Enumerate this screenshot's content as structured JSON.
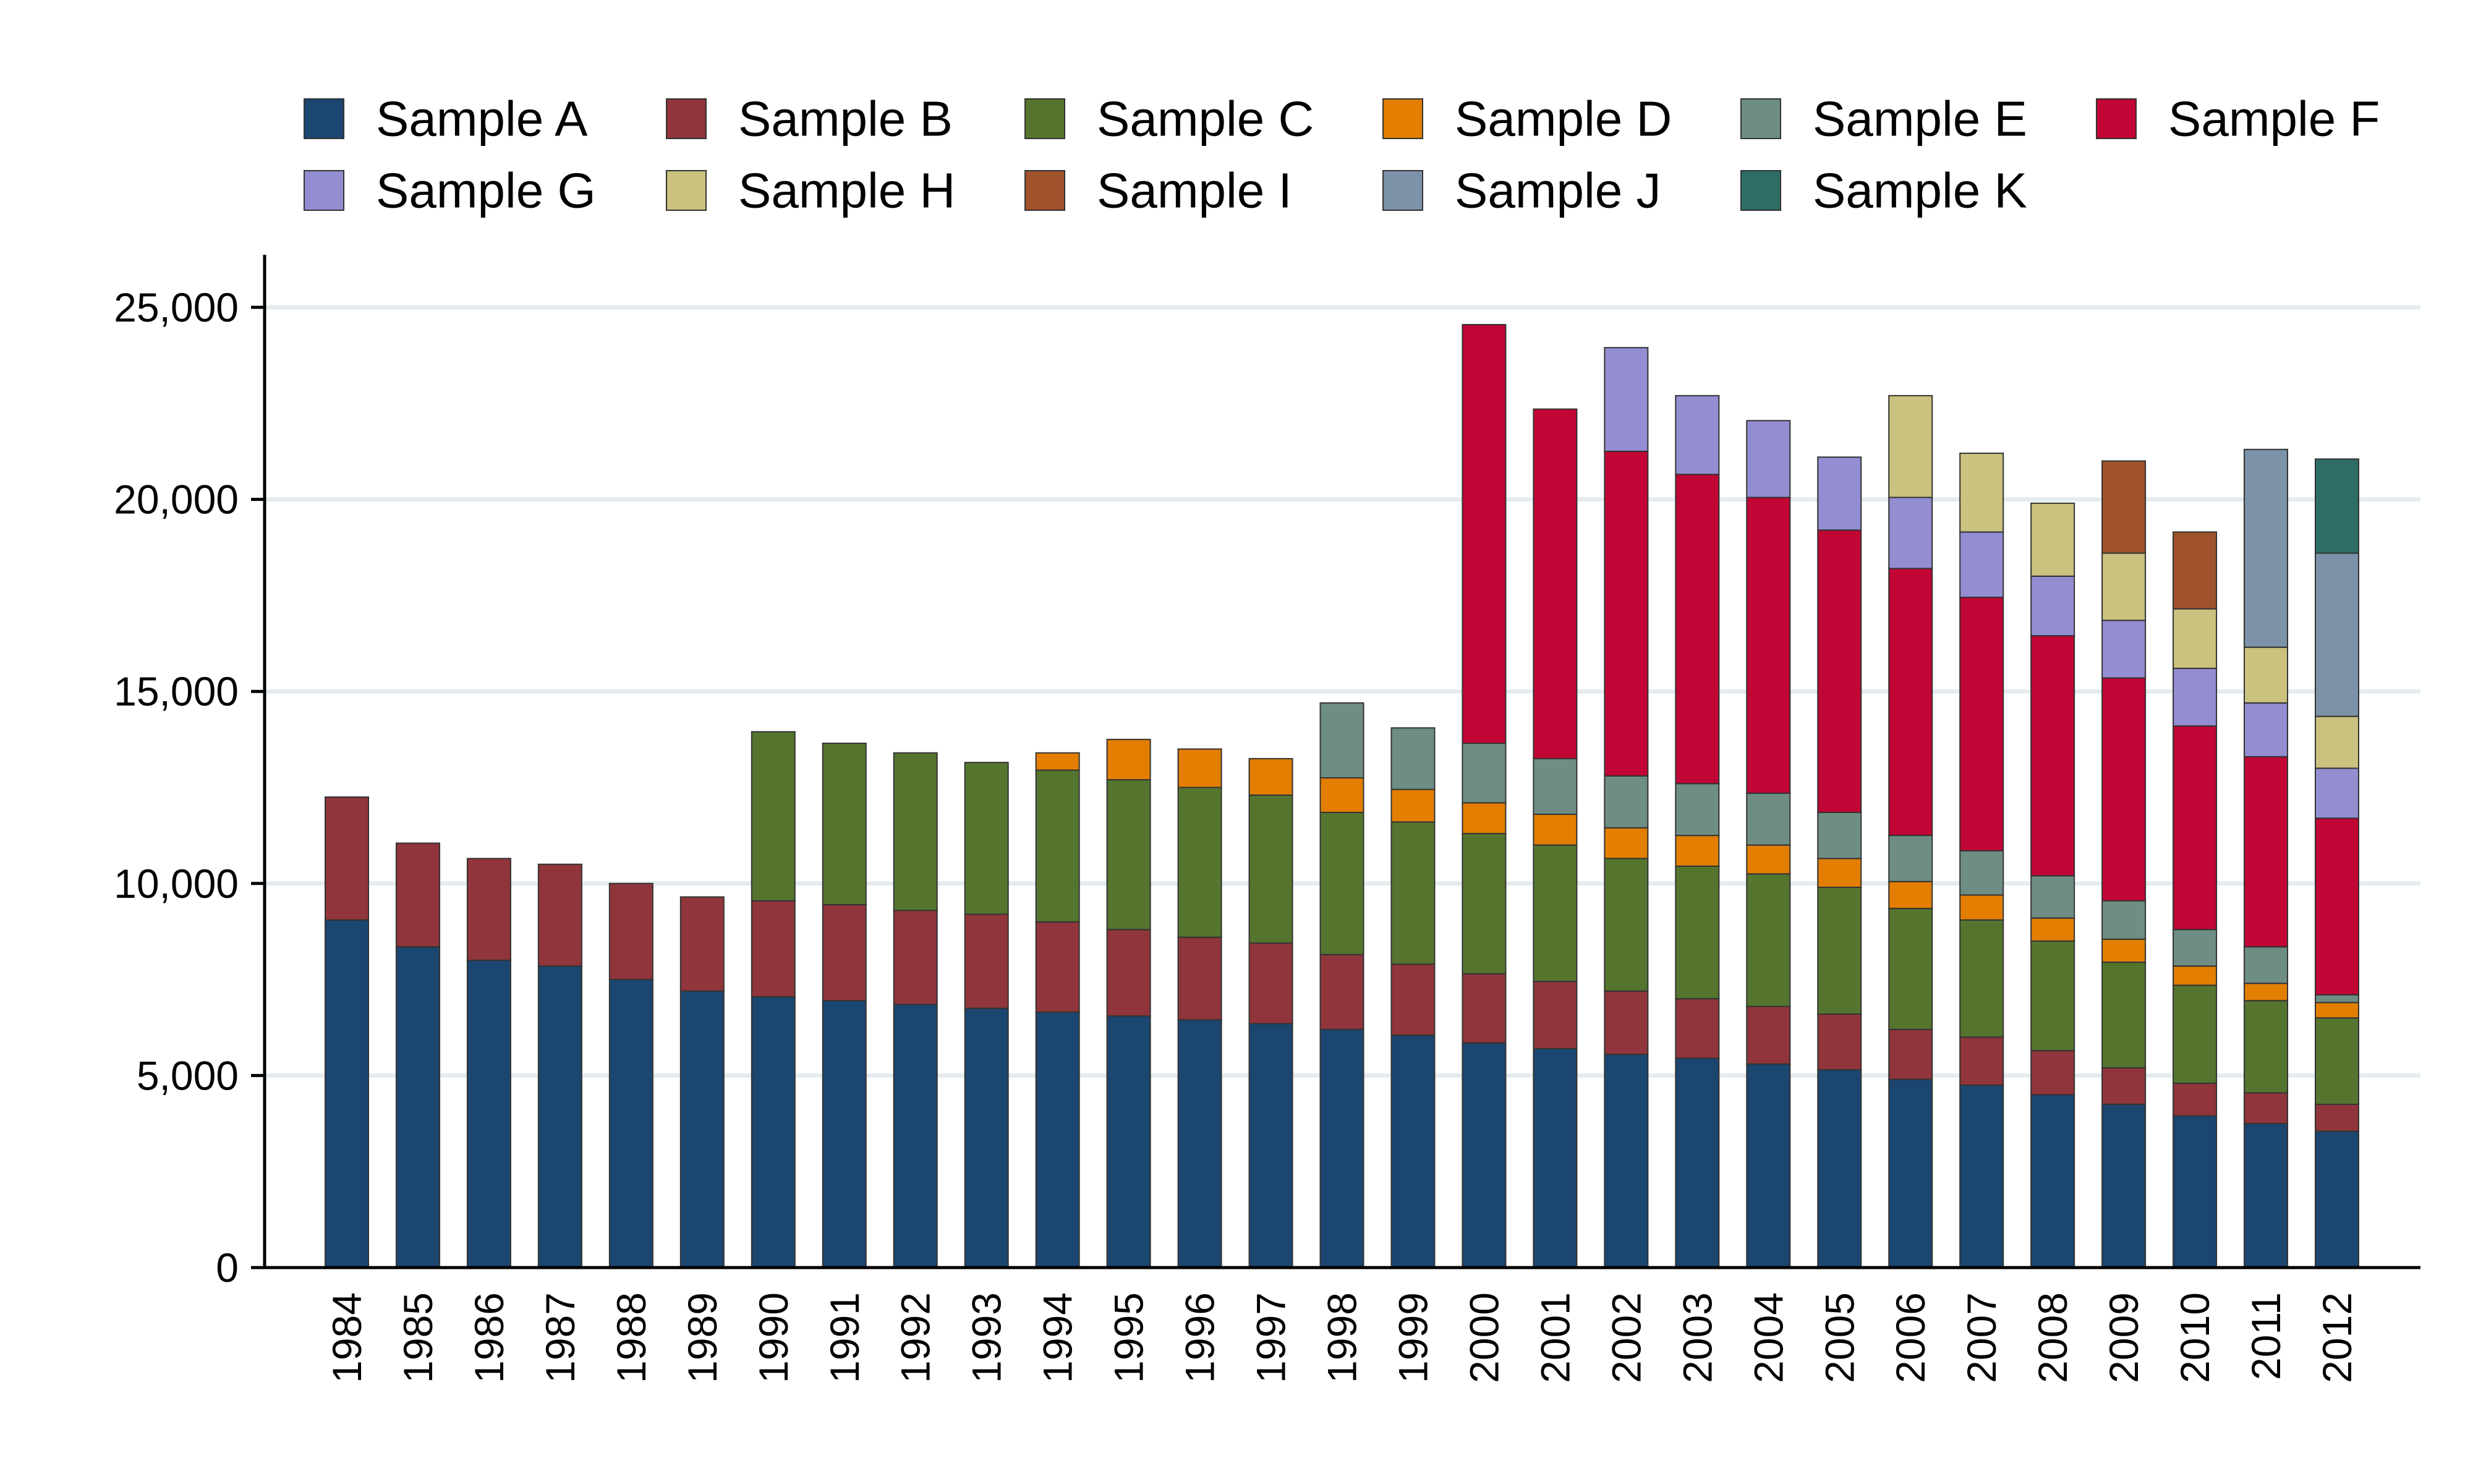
{
  "chart_data": {
    "type": "bar",
    "stacked": true,
    "title": "",
    "xlabel": "",
    "ylabel": "",
    "ylim": [
      0,
      26000
    ],
    "yticks": [
      0,
      5000,
      10000,
      15000,
      20000,
      25000
    ],
    "ytick_labels": [
      "0",
      "5,000",
      "10,000",
      "15,000",
      "20,000",
      "25,000"
    ],
    "grid": "horizontal",
    "legend_position": "top",
    "categories": [
      "1984",
      "1985",
      "1986",
      "1987",
      "1988",
      "1989",
      "1990",
      "1991",
      "1992",
      "1993",
      "1994",
      "1995",
      "1996",
      "1997",
      "1998",
      "1999",
      "2000",
      "2001",
      "2002",
      "2003",
      "2004",
      "2005",
      "2006",
      "2007",
      "2008",
      "2009",
      "2010",
      "2011",
      "2012"
    ],
    "series": [
      {
        "name": "Sample A",
        "color": "#1b4670",
        "values": [
          9050,
          8350,
          8000,
          7850,
          7500,
          7200,
          7050,
          6950,
          6850,
          6750,
          6650,
          6550,
          6450,
          6350,
          6200,
          6050,
          5850,
          5700,
          5550,
          5450,
          5300,
          5150,
          4900,
          4750,
          4500,
          4250,
          3950,
          3750,
          3550
        ]
      },
      {
        "name": "Sample B",
        "color": "#90353b",
        "values": [
          3200,
          2700,
          2650,
          2650,
          2500,
          2450,
          2500,
          2500,
          2450,
          2450,
          2350,
          2250,
          2150,
          2100,
          1950,
          1850,
          1800,
          1750,
          1650,
          1550,
          1500,
          1450,
          1300,
          1250,
          1150,
          950,
          850,
          800,
          700
        ]
      },
      {
        "name": "Sample C",
        "color": "#55752f",
        "values": [
          0,
          0,
          0,
          0,
          0,
          0,
          4400,
          4200,
          4100,
          3950,
          3950,
          3900,
          3900,
          3850,
          3700,
          3700,
          3650,
          3550,
          3450,
          3450,
          3450,
          3300,
          3150,
          3050,
          2850,
          2750,
          2550,
          2400,
          2250
        ]
      },
      {
        "name": "Sample D",
        "color": "#e37e00",
        "values": [
          0,
          0,
          0,
          0,
          0,
          0,
          0,
          0,
          0,
          0,
          450,
          1050,
          1000,
          950,
          900,
          850,
          800,
          800,
          800,
          800,
          750,
          750,
          700,
          650,
          600,
          600,
          500,
          450,
          400
        ]
      },
      {
        "name": "Sample E",
        "color": "#6e8e84",
        "values": [
          0,
          0,
          0,
          0,
          0,
          0,
          0,
          0,
          0,
          0,
          0,
          0,
          0,
          0,
          1950,
          1600,
          1550,
          1450,
          1350,
          1350,
          1350,
          1200,
          1200,
          1150,
          1100,
          1000,
          950,
          950,
          200
        ]
      },
      {
        "name": "Sample F",
        "color": "#c10534",
        "values": [
          0,
          0,
          0,
          0,
          0,
          0,
          0,
          0,
          0,
          0,
          0,
          0,
          0,
          0,
          0,
          0,
          10900,
          9100,
          8450,
          8050,
          7700,
          7350,
          6950,
          6600,
          6250,
          5800,
          5300,
          4950,
          4600
        ]
      },
      {
        "name": "Sample G",
        "color": "#938dd2",
        "values": [
          0,
          0,
          0,
          0,
          0,
          0,
          0,
          0,
          0,
          0,
          0,
          0,
          0,
          0,
          0,
          0,
          0,
          0,
          2700,
          2050,
          2000,
          1900,
          1850,
          1700,
          1550,
          1500,
          1500,
          1400,
          1300
        ]
      },
      {
        "name": "Sample H",
        "color": "#cac27e",
        "values": [
          0,
          0,
          0,
          0,
          0,
          0,
          0,
          0,
          0,
          0,
          0,
          0,
          0,
          0,
          0,
          0,
          0,
          0,
          0,
          0,
          0,
          0,
          2650,
          2050,
          1900,
          1750,
          1550,
          1450,
          1350
        ]
      },
      {
        "name": "Sample I",
        "color": "#a0522d",
        "values": [
          0,
          0,
          0,
          0,
          0,
          0,
          0,
          0,
          0,
          0,
          0,
          0,
          0,
          0,
          0,
          0,
          0,
          0,
          0,
          0,
          0,
          0,
          0,
          0,
          0,
          2400,
          2000,
          0,
          0
        ]
      },
      {
        "name": "Sample J",
        "color": "#7b92a8",
        "values": [
          0,
          0,
          0,
          0,
          0,
          0,
          0,
          0,
          0,
          0,
          0,
          0,
          0,
          0,
          0,
          0,
          0,
          0,
          0,
          0,
          0,
          0,
          0,
          0,
          0,
          0,
          0,
          5150,
          4250
        ]
      },
      {
        "name": "Sample K",
        "color": "#2d6d66",
        "values": [
          0,
          0,
          0,
          0,
          0,
          0,
          0,
          0,
          0,
          0,
          0,
          0,
          0,
          0,
          0,
          0,
          0,
          0,
          0,
          0,
          0,
          0,
          0,
          0,
          0,
          0,
          0,
          0,
          2450
        ]
      }
    ]
  }
}
